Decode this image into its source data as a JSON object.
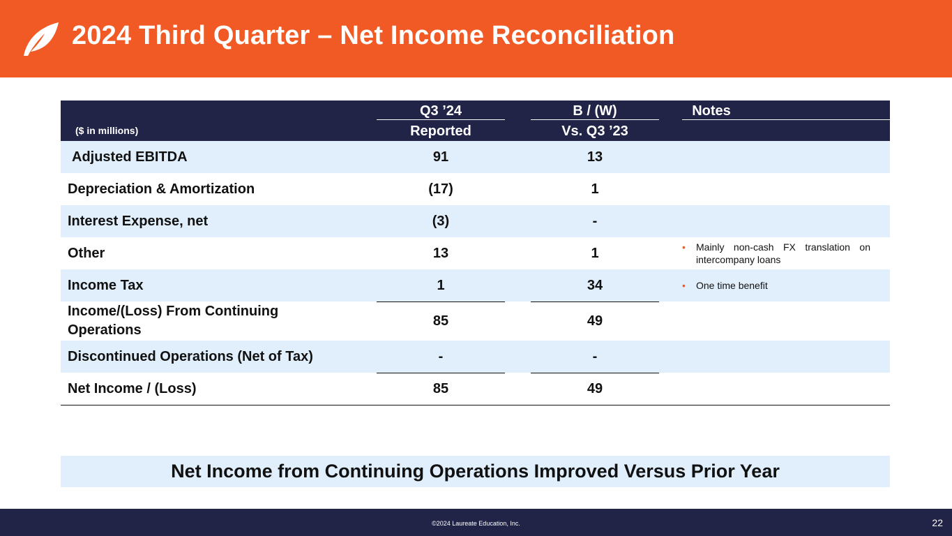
{
  "header": {
    "title": "2024 Third Quarter – Net Income Reconciliation",
    "logo_icon": "leaf-logo-icon",
    "bg_color": "#f15a24"
  },
  "table": {
    "units_label": "($ in millions)",
    "col1_top": "Q3 ’24",
    "col1_bottom": "Reported",
    "col2_top": "B / (W)",
    "col2_bottom": "Vs. Q3 ’23",
    "col3_top": "Notes",
    "rows": [
      {
        "label": "Adjusted EBITDA",
        "reported": "91",
        "vs_prior": "13"
      },
      {
        "label": "Depreciation & Amortization",
        "reported": "(17)",
        "vs_prior": "1"
      },
      {
        "label": "Interest Expense, net",
        "reported": "(3)",
        "vs_prior": "-"
      },
      {
        "label": "Other",
        "reported": "13",
        "vs_prior": "1",
        "note": "Mainly non-cash FX translation on intercompany loans"
      },
      {
        "label": "Income Tax",
        "reported": "1",
        "vs_prior": "34",
        "note": "One time benefit"
      },
      {
        "label": "Income/(Loss) From Continuing Operations",
        "reported": "85",
        "vs_prior": "49"
      },
      {
        "label": "Discontinued Operations (Net of Tax)",
        "reported": "-",
        "vs_prior": "-"
      },
      {
        "label": "Net Income / (Loss)",
        "reported": "85",
        "vs_prior": "49"
      }
    ]
  },
  "banner": {
    "text": "Net Income from Continuing Operations Improved Versus Prior Year"
  },
  "footer": {
    "copyright": "©2024 Laureate Education, Inc.",
    "page_number": "22",
    "bg_color": "#212447"
  }
}
